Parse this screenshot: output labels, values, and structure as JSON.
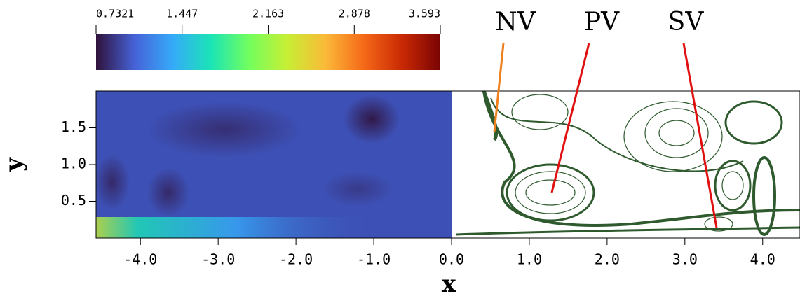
{
  "chart_data": {
    "type": "field",
    "xlabel": "x",
    "ylabel": "y",
    "xlim": [
      -4.57,
      4.48
    ],
    "xticks": [
      {
        "value": -4,
        "label": "-4.0"
      },
      {
        "value": -3,
        "label": "-3.0"
      },
      {
        "value": -2,
        "label": "-2.0"
      },
      {
        "value": -1,
        "label": "-1.0"
      },
      {
        "value": 0,
        "label": "0.0"
      },
      {
        "value": 1,
        "label": "1.0"
      },
      {
        "value": 2,
        "label": "2.0"
      },
      {
        "value": 3,
        "label": "3.0"
      },
      {
        "value": 4,
        "label": "4.0"
      }
    ],
    "ylim": [
      0,
      2.0
    ],
    "yticks": [
      0.5,
      {
        "value": 1,
        "label": "1.0"
      },
      1.5
    ],
    "colorbar": {
      "lim": [
        0.7321,
        3.593
      ],
      "ticks": [
        0.7321,
        1.447,
        2.163,
        2.878,
        3.593
      ],
      "colors": [
        "#30123b",
        "#4662d7",
        "#36aaf9",
        "#1ae4b6",
        "#72fe5e",
        "#c7ef34",
        "#fbb938",
        "#f56918",
        "#c92903",
        "#7a0403"
      ]
    },
    "annotations": [
      "NV",
      "PV",
      "SV"
    ]
  }
}
